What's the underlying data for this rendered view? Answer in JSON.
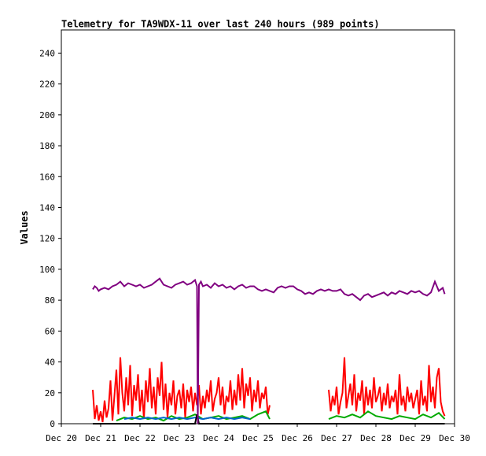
{
  "chart_data": {
    "type": "line",
    "title": "Telemetry for TA9WDX-11 over last 240 hours (989 points)",
    "xlabel": "",
    "ylabel": "Values",
    "ylim": [
      0,
      255
    ],
    "y_ticks": [
      0,
      20,
      40,
      60,
      80,
      100,
      120,
      140,
      160,
      180,
      200,
      220,
      240
    ],
    "x_tick_labels": [
      "Dec 20",
      "Dec 21",
      "Dec 22",
      "Dec 23",
      "Dec 24",
      "Dec 25",
      "Dec 26",
      "Dec 27",
      "Dec 28",
      "Dec 29",
      "Dec 30"
    ],
    "xlim": [
      0,
      10
    ],
    "grid": false,
    "legend": "none",
    "series": [
      {
        "color": "#ff0000",
        "x": [
          0.8,
          0.85,
          0.9,
          0.95,
          1.0,
          1.05,
          1.1,
          1.15,
          1.2,
          1.25,
          1.3,
          1.35,
          1.4,
          1.45,
          1.5,
          1.55,
          1.6,
          1.65,
          1.7,
          1.75,
          1.8,
          1.85,
          1.9,
          1.95,
          2.0,
          2.05,
          2.1,
          2.15,
          2.2,
          2.25,
          2.3,
          2.35,
          2.4,
          2.45,
          2.5,
          2.55,
          2.6,
          2.65,
          2.7,
          2.75,
          2.8,
          2.85,
          2.9,
          2.95,
          3.0,
          3.05,
          3.1,
          3.15,
          3.2,
          3.25,
          3.3,
          3.35,
          3.4,
          3.45,
          3.5,
          3.55,
          3.6,
          3.65,
          3.7,
          3.75,
          3.8,
          3.85,
          3.9,
          3.95,
          4.0,
          4.05,
          4.1,
          4.15,
          4.2,
          4.25,
          4.3,
          4.35,
          4.4,
          4.45,
          4.5,
          4.55,
          4.6,
          4.65,
          4.7,
          4.75,
          4.8,
          4.85,
          4.9,
          4.95,
          5.0,
          5.05,
          5.1,
          5.15,
          5.2,
          5.25,
          5.3
        ],
        "y": [
          22,
          3,
          12,
          2,
          8,
          1,
          15,
          4,
          10,
          28,
          2,
          18,
          35,
          6,
          43,
          20,
          8,
          30,
          12,
          38,
          5,
          25,
          15,
          32,
          8,
          22,
          3,
          28,
          14,
          36,
          10,
          24,
          6,
          30,
          18,
          40,
          9,
          26,
          4,
          20,
          12,
          28,
          6,
          18,
          22,
          10,
          26,
          4,
          22,
          14,
          24,
          8,
          20,
          12,
          25,
          6,
          18,
          10,
          22,
          14,
          28,
          8,
          16,
          20,
          30,
          12,
          24,
          6,
          18,
          14,
          28,
          9,
          22,
          12,
          32,
          15,
          36,
          10,
          26,
          18,
          30,
          8,
          22,
          14,
          28,
          10,
          20,
          16,
          24,
          6,
          12
        ]
      },
      {
        "color": "#ff0000",
        "x": [
          6.8,
          6.85,
          6.9,
          6.95,
          7.0,
          7.05,
          7.1,
          7.15,
          7.2,
          7.25,
          7.3,
          7.35,
          7.4,
          7.45,
          7.5,
          7.55,
          7.6,
          7.65,
          7.7,
          7.75,
          7.8,
          7.85,
          7.9,
          7.95,
          8.0,
          8.05,
          8.1,
          8.15,
          8.2,
          8.25,
          8.3,
          8.35,
          8.4,
          8.45,
          8.5,
          8.55,
          8.6,
          8.65,
          8.7,
          8.75,
          8.8,
          8.85,
          8.9,
          8.95,
          9.0,
          9.05,
          9.1,
          9.15,
          9.2,
          9.25,
          9.3,
          9.35,
          9.4,
          9.45,
          9.5,
          9.55,
          9.6,
          9.65,
          9.7,
          9.75
        ],
        "y": [
          22,
          8,
          18,
          12,
          24,
          6,
          14,
          20,
          43,
          10,
          18,
          26,
          12,
          32,
          8,
          20,
          15,
          28,
          6,
          24,
          12,
          22,
          10,
          30,
          14,
          18,
          24,
          8,
          20,
          12,
          26,
          10,
          18,
          14,
          22,
          6,
          32,
          12,
          18,
          8,
          24,
          14,
          20,
          10,
          16,
          22,
          6,
          28,
          12,
          18,
          8,
          38,
          14,
          24,
          10,
          30,
          36,
          14,
          8,
          5
        ]
      },
      {
        "color": "#00aa00",
        "x": [
          1.4,
          1.6,
          1.8,
          2.0,
          2.2,
          2.4,
          2.6,
          2.8,
          3.0,
          3.2,
          3.4,
          3.6,
          3.8,
          4.0,
          4.2,
          4.4,
          4.6,
          4.8,
          5.0,
          5.2,
          5.3
        ],
        "y": [
          2,
          4,
          3,
          5,
          3,
          4,
          2,
          5,
          3,
          4,
          6,
          3,
          4,
          5,
          3,
          4,
          5,
          3,
          6,
          8,
          3
        ],
        "segments": [
          [
            6.8,
            9.75
          ]
        ],
        "x2": [
          6.8,
          7.0,
          7.2,
          7.4,
          7.6,
          7.8,
          8.0,
          8.2,
          8.4,
          8.6,
          8.8,
          9.0,
          9.2,
          9.4,
          9.6,
          9.75
        ],
        "y2": [
          3,
          5,
          4,
          6,
          4,
          8,
          5,
          4,
          3,
          5,
          4,
          3,
          6,
          4,
          7,
          3
        ]
      },
      {
        "color": "#0066cc",
        "x": [
          1.6,
          1.8,
          2.0,
          2.2,
          2.4,
          2.6,
          2.8,
          3.0,
          3.2,
          3.4,
          3.6,
          3.8,
          4.0,
          4.2,
          4.4,
          4.6,
          4.8
        ],
        "y": [
          3,
          4,
          3,
          4,
          3,
          4,
          3,
          4,
          3,
          4,
          3,
          4,
          3,
          4,
          3,
          4,
          3
        ]
      },
      {
        "color": "#000000",
        "x": [
          0.8,
          3.0,
          3.4,
          3.45,
          3.5,
          3.55,
          4.0,
          6.0,
          9.75
        ],
        "y": [
          0,
          0,
          0,
          6,
          0,
          0,
          0,
          0,
          0
        ]
      },
      {
        "color": "#800080",
        "x": [
          0.8,
          0.85,
          0.9,
          0.95,
          1.0,
          1.1,
          1.2,
          1.3,
          1.4,
          1.5,
          1.6,
          1.7,
          1.8,
          1.9,
          2.0,
          2.1,
          2.2,
          2.3,
          2.4,
          2.5,
          2.6,
          2.7,
          2.8,
          2.9,
          3.0,
          3.1,
          3.2,
          3.3,
          3.4,
          3.45,
          3.47,
          3.5,
          3.55,
          3.6,
          3.7,
          3.8,
          3.9,
          4.0,
          4.1,
          4.2,
          4.3,
          4.4,
          4.5,
          4.6,
          4.7,
          4.8,
          4.9,
          5.0,
          5.1,
          5.2,
          5.3,
          5.4,
          5.5,
          5.6,
          5.7,
          5.8,
          5.9,
          6.0,
          6.1,
          6.2,
          6.3,
          6.4,
          6.5,
          6.6,
          6.7,
          6.8,
          6.9,
          7.0,
          7.1,
          7.2,
          7.3,
          7.4,
          7.5,
          7.6,
          7.7,
          7.8,
          7.9,
          8.0,
          8.1,
          8.2,
          8.3,
          8.4,
          8.5,
          8.6,
          8.7,
          8.8,
          8.9,
          9.0,
          9.1,
          9.2,
          9.3,
          9.4,
          9.5,
          9.6,
          9.7,
          9.75
        ],
        "y": [
          87,
          89,
          88,
          86,
          87,
          88,
          87,
          89,
          90,
          92,
          89,
          91,
          90,
          89,
          90,
          88,
          89,
          90,
          92,
          94,
          90,
          89,
          88,
          90,
          91,
          92,
          90,
          91,
          93,
          89,
          0,
          90,
          92,
          89,
          90,
          88,
          91,
          89,
          90,
          88,
          89,
          87,
          89,
          90,
          88,
          89,
          89,
          87,
          86,
          87,
          86,
          85,
          88,
          89,
          88,
          89,
          89,
          87,
          86,
          84,
          85,
          84,
          86,
          87,
          86,
          87,
          86,
          86,
          87,
          84,
          83,
          84,
          82,
          80,
          83,
          84,
          82,
          83,
          84,
          85,
          83,
          85,
          84,
          86,
          85,
          84,
          86,
          85,
          86,
          84,
          83,
          85,
          92,
          86,
          88,
          84
        ]
      }
    ]
  }
}
